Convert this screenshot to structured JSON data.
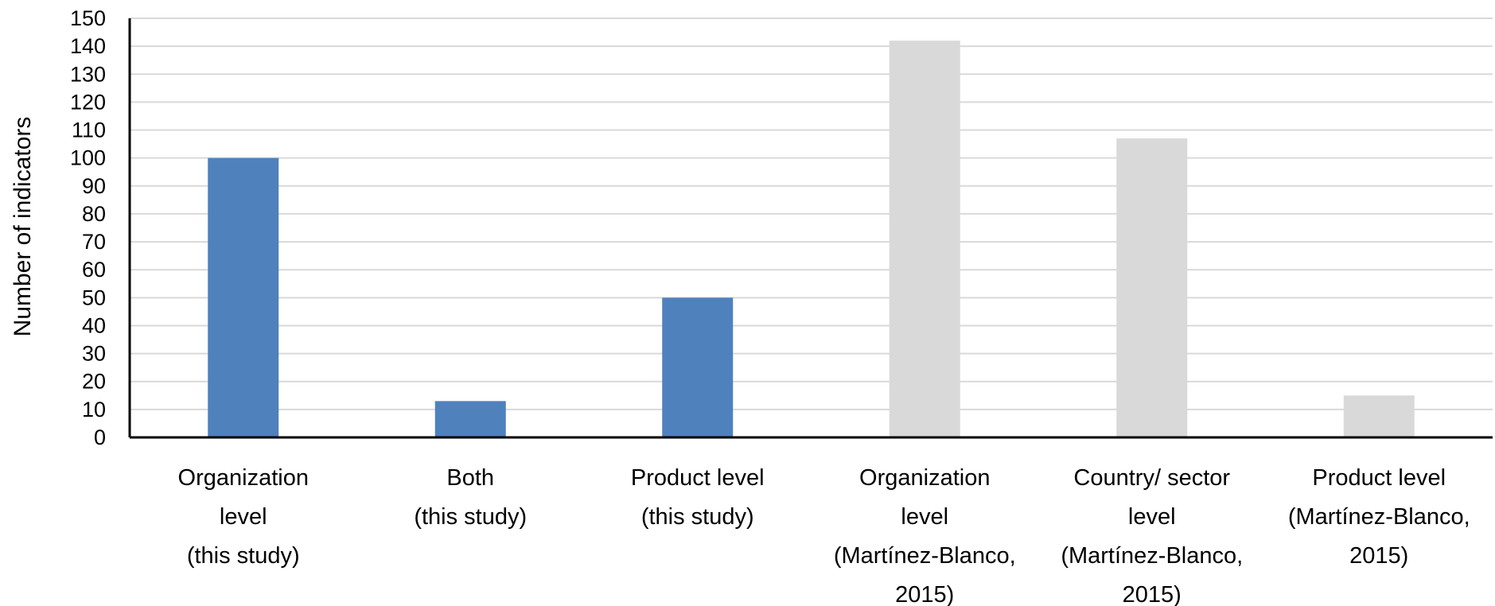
{
  "chart_data": {
    "type": "bar",
    "title": "",
    "xlabel": "",
    "ylabel": "Number of indicators",
    "ylim": [
      0,
      150
    ],
    "ytick_step": 10,
    "yticks": [
      "0",
      "10",
      "20",
      "30",
      "40",
      "50",
      "60",
      "70",
      "80",
      "90",
      "100",
      "110",
      "120",
      "130",
      "140",
      "150"
    ],
    "grid": true,
    "legend": "none",
    "categories": [
      [
        "Organization",
        "level",
        "(this study)"
      ],
      [
        "Both",
        "(this study)"
      ],
      [
        "Product level",
        "(this study)"
      ],
      [
        "Organization",
        "level",
        "(Martínez-Blanco,",
        "2015)"
      ],
      [
        "Country/ sector",
        "level",
        "(Martínez-Blanco,",
        "2015)"
      ],
      [
        "Product level",
        "(Martínez-Blanco,",
        "2015)"
      ]
    ],
    "values": [
      100,
      13,
      50,
      142,
      107,
      15
    ],
    "colors": [
      "#4f81bd",
      "#4f81bd",
      "#4f81bd",
      "#d9d9d9",
      "#d9d9d9",
      "#d9d9d9"
    ],
    "gridline_color": "#d9d9d9",
    "axis_color": "#000000"
  }
}
